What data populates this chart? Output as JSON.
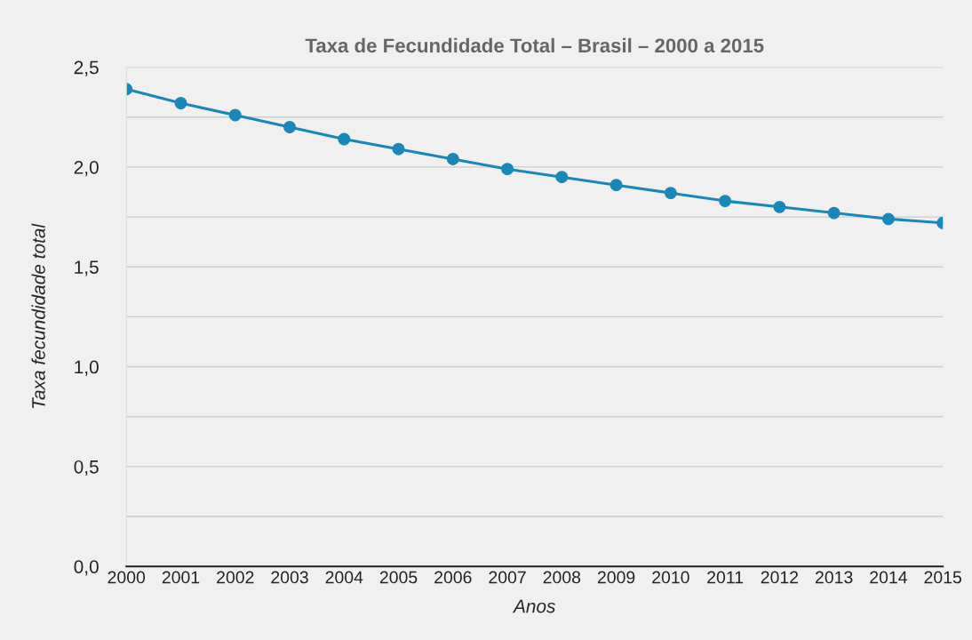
{
  "chart_data": {
    "type": "line",
    "title": "Taxa de Fecundidade Total – Brasil – 2000 a 2015",
    "xlabel": "Anos",
    "ylabel": "Taxa fecundidade total",
    "x": [
      2000,
      2001,
      2002,
      2003,
      2004,
      2005,
      2006,
      2007,
      2008,
      2009,
      2010,
      2011,
      2012,
      2013,
      2014,
      2015
    ],
    "series": [
      {
        "color": "#1a87b8",
        "values": [
          2.39,
          2.32,
          2.26,
          2.2,
          2.14,
          2.09,
          2.04,
          1.99,
          1.95,
          1.91,
          1.87,
          1.83,
          1.8,
          1.77,
          1.74,
          1.72
        ]
      }
    ],
    "xlim": [
      2000,
      2015
    ],
    "xticks": [
      2000,
      2001,
      2002,
      2003,
      2004,
      2005,
      2006,
      2007,
      2008,
      2009,
      2010,
      2011,
      2012,
      2013,
      2014,
      2015
    ],
    "ylim": [
      0,
      2.5
    ],
    "yticks": [
      {
        "value": 0,
        "label": "0,0"
      },
      {
        "value": 0.25,
        "label": null
      },
      {
        "value": 0.5,
        "label": "0,5"
      },
      {
        "value": 0.75,
        "label": null
      },
      {
        "value": 1.0,
        "label": "1,0"
      },
      {
        "value": 1.25,
        "label": null
      },
      {
        "value": 1.5,
        "label": "1,5"
      },
      {
        "value": 1.75,
        "label": null
      },
      {
        "value": 2.0,
        "label": "2,0"
      },
      {
        "value": 2.25,
        "label": null
      },
      {
        "value": 2.5,
        "label": "2,5"
      }
    ],
    "grid": "y",
    "marker": "circle",
    "line_style": "solid",
    "legend": false
  }
}
